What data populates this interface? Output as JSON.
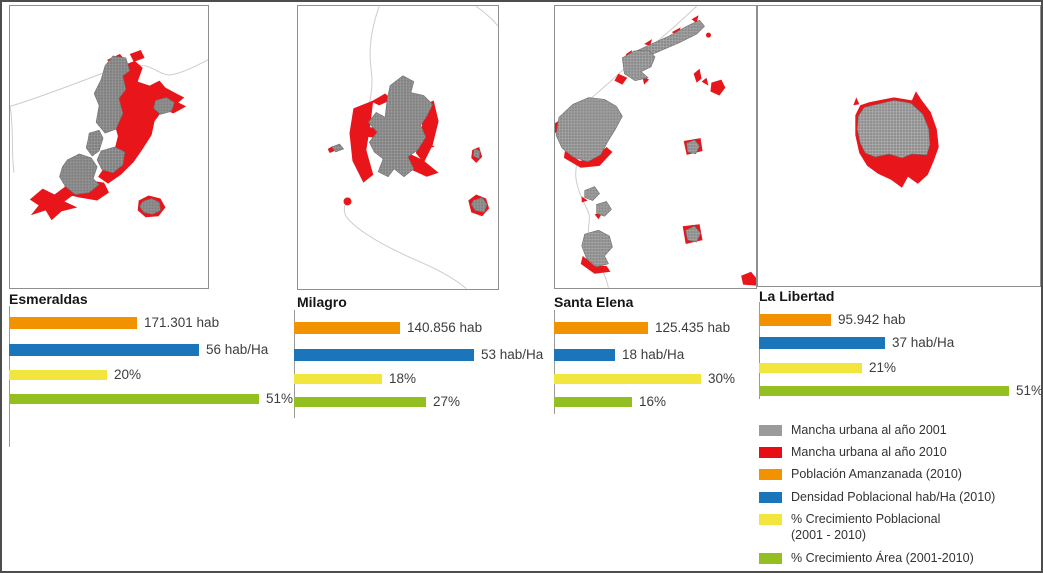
{
  "chart_data": {
    "type": "bar",
    "orientation": "horizontal",
    "description": "Urban sprawl maps (mancha urbana 2001 vs 2010) and growth indicator bars for four Ecuadorian cities",
    "series": [
      {
        "key": "poblacion",
        "name": "Población Amanzanada (2010)",
        "unit": "hab",
        "color": "#f29200"
      },
      {
        "key": "densidad",
        "name": "Densidad Poblacional hab/Ha (2010)",
        "unit": "hab/Ha",
        "color": "#1b75bb"
      },
      {
        "key": "crec_poblacional",
        "name": "% Crecimiento Poblacional (2001 - 2010)",
        "unit": "%",
        "color": "#f2e53d"
      },
      {
        "key": "crec_area",
        "name": "% Crecimiento Área (2001-2010)",
        "unit": "%",
        "color": "#94bf21"
      }
    ],
    "panels": [
      {
        "city": "Esmeraldas",
        "values": [
          171301,
          56,
          20,
          51
        ],
        "value_labels": [
          "171.301 hab",
          "56 hab/Ha",
          "20%",
          "51%"
        ]
      },
      {
        "city": "Milagro",
        "values": [
          140856,
          53,
          18,
          27
        ],
        "value_labels": [
          "140.856 hab",
          "53 hab/Ha",
          "18%",
          "27%"
        ]
      },
      {
        "city": "Santa Elena",
        "values": [
          125435,
          18,
          30,
          16
        ],
        "value_labels": [
          "125.435 hab",
          "18 hab/Ha",
          "30%",
          "16%"
        ]
      },
      {
        "city": "La Libertad",
        "values": [
          95942,
          37,
          21,
          51
        ],
        "value_labels": [
          "95.942 hab",
          "37 hab/Ha",
          "21%",
          "51%"
        ]
      }
    ],
    "legend": [
      {
        "color": "#9b9b9b",
        "label": "Mancha urbana al año 2001"
      },
      {
        "color": "#e60d14",
        "label": "Mancha urbana al año 2010"
      },
      {
        "color": "#f29200",
        "label": "Población Amanzanada (2010)"
      },
      {
        "color": "#1b75bb",
        "label": "Densidad Poblacional hab/Ha (2010)"
      },
      {
        "color": "#f2e53d",
        "label": "% Crecimiento Poblacional\n(2001 - 2010)"
      },
      {
        "color": "#94bf21",
        "label": "% Crecimiento Área (2001-2010)"
      }
    ],
    "map_colors": {
      "urban_2001": "#878787",
      "urban_2010": "#e8151b",
      "admin_boundary": "#cccccc"
    }
  }
}
